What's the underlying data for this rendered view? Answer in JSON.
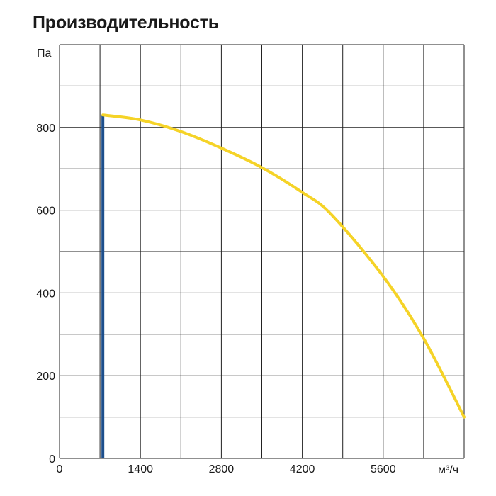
{
  "chart_data": {
    "type": "line",
    "title": "Производительность",
    "ylabel": "Па",
    "xlabel": "м³/ч",
    "xlim": [
      0,
      7000
    ],
    "ylim": [
      0,
      1000
    ],
    "x_ticks": [
      0,
      1400,
      2800,
      4200,
      5600
    ],
    "y_ticks": [
      0,
      200,
      400,
      600,
      800
    ],
    "x_tick_labels": [
      "0",
      "1400",
      "2800",
      "4200",
      "5600"
    ],
    "y_tick_labels": [
      "0",
      "200",
      "400",
      "600",
      "800"
    ],
    "grid": true,
    "series": [
      {
        "color": "#f5d327",
        "x": [
          750,
          1400,
          2100,
          2800,
          3500,
          4200,
          4700,
          5600,
          6300,
          7000
        ],
        "y": [
          830,
          818,
          790,
          750,
          703,
          643,
          590,
          440,
          290,
          100
        ]
      }
    ],
    "vertical_marker": {
      "color": "#1d4f8c",
      "x": 750,
      "y": [
        0,
        830
      ]
    }
  }
}
